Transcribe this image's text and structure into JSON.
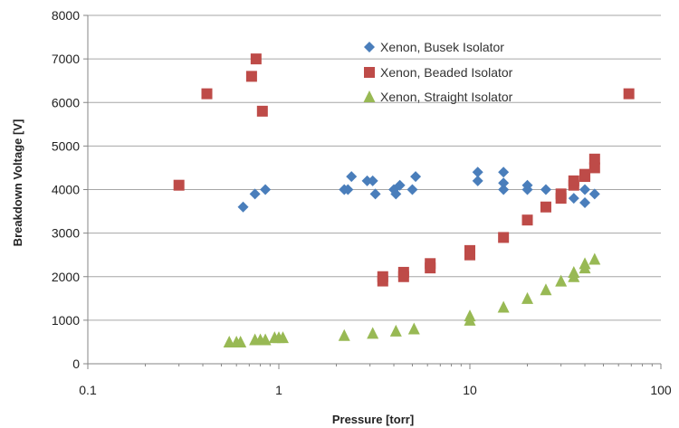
{
  "chart_data": {
    "type": "scatter",
    "title": "",
    "xlabel": "Pressure [torr]",
    "ylabel": "Breakdown Voltage [V]",
    "x_scale": "log",
    "xlim": [
      0.1,
      100
    ],
    "ylim": [
      0,
      8000
    ],
    "x_ticks": [
      0.1,
      1,
      10,
      100
    ],
    "x_tick_labels": [
      "0.1",
      "1",
      "10",
      "100"
    ],
    "y_ticks": [
      0,
      1000,
      2000,
      3000,
      4000,
      5000,
      6000,
      7000,
      8000
    ],
    "grid": {
      "horizontal": true,
      "vertical": false
    },
    "legend_position": "top-right",
    "series": [
      {
        "name": "Xenon, Busek Isolator",
        "marker": "diamond",
        "color": "#4a7ebb",
        "points": [
          [
            0.65,
            3600
          ],
          [
            0.75,
            3900
          ],
          [
            0.85,
            4000
          ],
          [
            2.2,
            4000
          ],
          [
            2.3,
            4000
          ],
          [
            2.4,
            4300
          ],
          [
            2.9,
            4200
          ],
          [
            3.1,
            4200
          ],
          [
            3.2,
            3900
          ],
          [
            4.0,
            4000
          ],
          [
            4.1,
            3900
          ],
          [
            4.3,
            4100
          ],
          [
            5.0,
            4000
          ],
          [
            5.2,
            4300
          ],
          [
            11,
            4200
          ],
          [
            11,
            4400
          ],
          [
            15,
            4400
          ],
          [
            15,
            4150
          ],
          [
            15,
            4000
          ],
          [
            20,
            4100
          ],
          [
            20,
            4000
          ],
          [
            25,
            4000
          ],
          [
            35,
            3800
          ],
          [
            40,
            4000
          ],
          [
            40,
            3700
          ],
          [
            45,
            3900
          ]
        ]
      },
      {
        "name": "Xenon, Beaded Isolator",
        "marker": "square",
        "color": "#be4b48",
        "points": [
          [
            0.3,
            4100
          ],
          [
            0.42,
            6200
          ],
          [
            0.72,
            6600
          ],
          [
            0.76,
            7000
          ],
          [
            0.82,
            5800
          ],
          [
            3.5,
            2000
          ],
          [
            3.5,
            1900
          ],
          [
            4.5,
            2100
          ],
          [
            4.5,
            2000
          ],
          [
            6.2,
            2300
          ],
          [
            6.2,
            2200
          ],
          [
            10,
            2600
          ],
          [
            10,
            2500
          ],
          [
            15,
            2900
          ],
          [
            20,
            3300
          ],
          [
            25,
            3600
          ],
          [
            30,
            3800
          ],
          [
            30,
            3900
          ],
          [
            35,
            4100
          ],
          [
            35,
            4200
          ],
          [
            40,
            4300
          ],
          [
            40,
            4350
          ],
          [
            45,
            4500
          ],
          [
            45,
            4700
          ],
          [
            68,
            6200
          ]
        ]
      },
      {
        "name": "Xenon, Straight Isolator",
        "marker": "triangle",
        "color": "#98b954",
        "points": [
          [
            0.55,
            500
          ],
          [
            0.6,
            500
          ],
          [
            0.63,
            500
          ],
          [
            0.75,
            550
          ],
          [
            0.8,
            550
          ],
          [
            0.85,
            550
          ],
          [
            0.95,
            600
          ],
          [
            1.0,
            600
          ],
          [
            1.05,
            600
          ],
          [
            2.2,
            650
          ],
          [
            3.1,
            700
          ],
          [
            4.1,
            750
          ],
          [
            5.1,
            800
          ],
          [
            10,
            1000
          ],
          [
            10,
            1100
          ],
          [
            15,
            1300
          ],
          [
            20,
            1500
          ],
          [
            25,
            1700
          ],
          [
            30,
            1900
          ],
          [
            35,
            2000
          ],
          [
            35,
            2100
          ],
          [
            40,
            2200
          ],
          [
            40,
            2300
          ],
          [
            45,
            2400
          ]
        ]
      }
    ]
  }
}
